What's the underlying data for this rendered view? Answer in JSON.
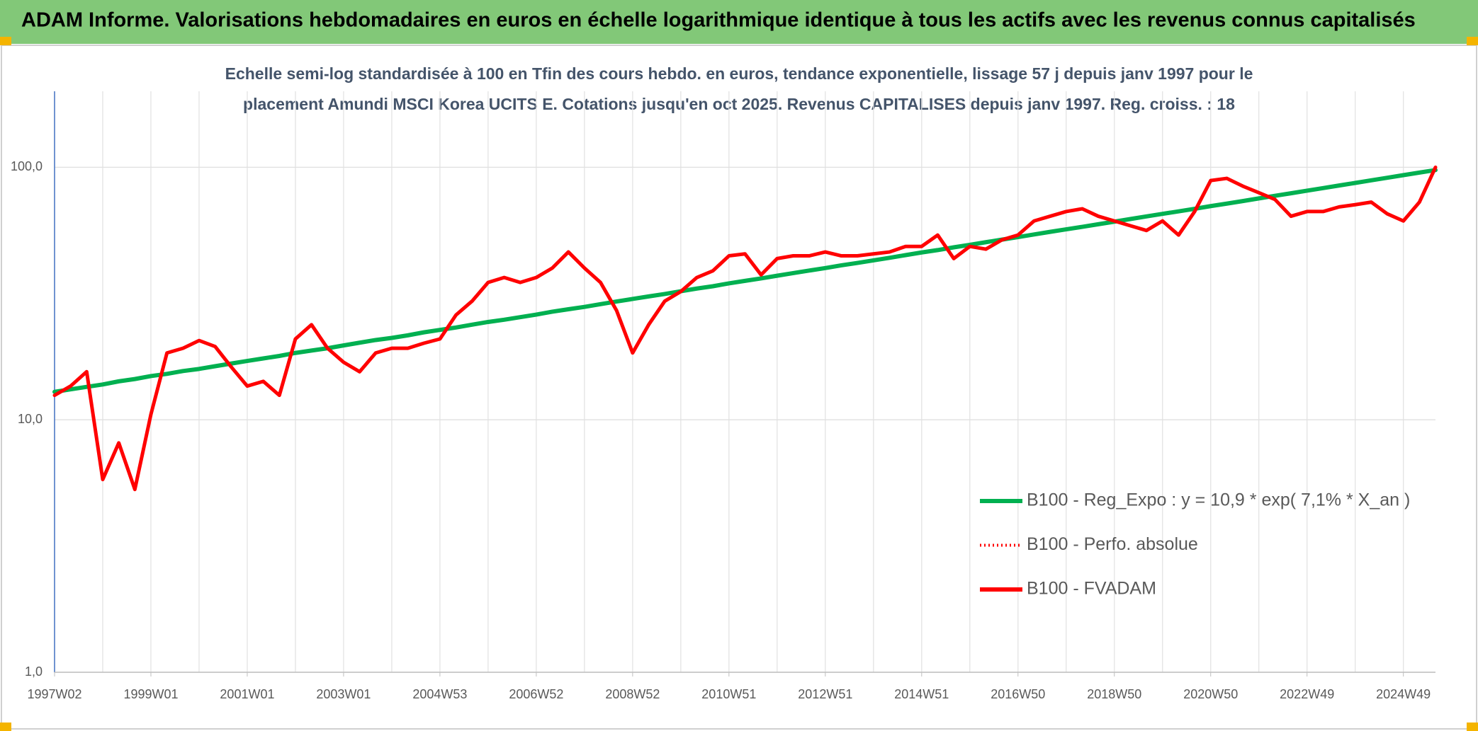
{
  "chart_data": {
    "type": "line",
    "title": "ADAM Informe. Valorisations hebdomadaires en euros en échelle logarithmique identique à tous les actifs avec les revenus connus capitalisés",
    "subtitle": [
      "Echelle semi-log standardisée à 100 en Tfin des cours hebdo. en euros, tendance exponentielle, lissage 57 j depuis janv 1997 pour le",
      "placement Amundi MSCI Korea UCITS E. Cotations jusqu'en oct 2025. Revenus CAPITALISES depuis janv 1997. Reg. croiss. : 18"
    ],
    "log_scale": true,
    "grid": true,
    "legend_position": "lower right",
    "ylim": [
      1,
      200
    ],
    "yticks": [
      {
        "value": 1,
        "label": "1,0"
      },
      {
        "value": 10,
        "label": "10,0"
      },
      {
        "value": 100,
        "label": "100,0"
      }
    ],
    "categories": [
      "1997W02",
      null,
      null,
      null,
      null,
      null,
      "1999W01",
      null,
      null,
      null,
      null,
      null,
      "2001W01",
      null,
      null,
      null,
      null,
      null,
      "2003W01",
      null,
      null,
      null,
      null,
      null,
      "2004W53",
      null,
      null,
      null,
      null,
      null,
      "2006W52",
      null,
      null,
      null,
      null,
      null,
      "2008W52",
      null,
      null,
      null,
      null,
      null,
      "2010W51",
      null,
      null,
      null,
      null,
      null,
      "2012W51",
      null,
      null,
      null,
      null,
      null,
      "2014W51",
      null,
      null,
      null,
      null,
      null,
      "2016W50",
      null,
      null,
      null,
      null,
      null,
      "2018W50",
      null,
      null,
      null,
      null,
      null,
      "2020W50",
      null,
      null,
      null,
      null,
      null,
      "2022W49",
      null,
      null,
      null,
      null,
      null,
      "2024W49",
      null,
      null
    ],
    "series": [
      {
        "name": "B100 - Reg_Expo : y = 10,9 * exp( 7,1% *  X_an )",
        "color": "#00b050",
        "dash": "solid",
        "values": [
          12.9,
          13.2,
          13.5,
          13.8,
          14.2,
          14.5,
          14.9,
          15.2,
          15.6,
          15.9,
          16.3,
          16.7,
          17.1,
          17.5,
          17.9,
          18.4,
          18.8,
          19.2,
          19.7,
          20.2,
          20.7,
          21.1,
          21.6,
          22.2,
          22.7,
          23.2,
          23.8,
          24.4,
          24.9,
          25.5,
          26.1,
          26.8,
          27.4,
          28.0,
          28.7,
          29.4,
          30.1,
          30.8,
          31.5,
          32.3,
          33.1,
          33.8,
          34.7,
          35.5,
          36.3,
          37.2,
          38.1,
          39.0,
          39.9,
          40.9,
          41.8,
          42.8,
          43.8,
          44.9,
          46.0,
          47.0,
          48.2,
          49.3,
          50.5,
          51.7,
          52.9,
          54.2,
          55.5,
          56.8,
          58.1,
          59.5,
          60.9,
          62.4,
          63.9,
          65.4,
          66.9,
          68.5,
          70.2,
          71.8,
          73.5,
          75.3,
          77.1,
          78.9,
          80.8,
          82.7,
          84.7,
          86.7,
          88.8,
          90.9,
          93.1,
          95.3,
          97.5
        ]
      },
      {
        "name": "B100 - Perfo. absolue",
        "color": "#ff0000",
        "dash": "dotted",
        "values": [
          12.5,
          13.6,
          15.5,
          5.8,
          8.1,
          5.3,
          10.5,
          18.4,
          19.2,
          20.6,
          19.5,
          16.2,
          13.6,
          14.2,
          12.5,
          20.9,
          23.8,
          19.2,
          16.9,
          15.5,
          18.4,
          19.2,
          19.2,
          20.1,
          20.9,
          26,
          29.5,
          35,
          36.6,
          35,
          36.6,
          39.9,
          46.2,
          39.9,
          35,
          27.1,
          18.4,
          23.8,
          29.5,
          32.2,
          36.6,
          38.9,
          44.6,
          45.4,
          37.5,
          43.5,
          44.6,
          44.6,
          46.2,
          44.6,
          44.6,
          45.4,
          46.2,
          48.6,
          48.6,
          53.9,
          43.5,
          48.6,
          47.4,
          51.6,
          53.9,
          61.3,
          64,
          66.8,
          68.5,
          64,
          61.3,
          58.7,
          56.2,
          61.3,
          53.9,
          66.8,
          88.6,
          90.4,
          84.2,
          79.3,
          74.6,
          64,
          66.8,
          66.8,
          69.7,
          71.1,
          72.8,
          65.4,
          61.3,
          72.8,
          100
        ]
      },
      {
        "name": "B100 - FVADAM",
        "color": "#ff0000",
        "dash": "solid",
        "values": [
          12.5,
          13.6,
          15.5,
          5.8,
          8.1,
          5.3,
          10.5,
          18.4,
          19.2,
          20.6,
          19.5,
          16.2,
          13.6,
          14.2,
          12.5,
          20.9,
          23.8,
          19.2,
          16.9,
          15.5,
          18.4,
          19.2,
          19.2,
          20.1,
          20.9,
          26,
          29.5,
          35,
          36.6,
          35,
          36.6,
          39.9,
          46.2,
          39.9,
          35,
          27.1,
          18.4,
          23.8,
          29.5,
          32.2,
          36.6,
          38.9,
          44.6,
          45.4,
          37.5,
          43.5,
          44.6,
          44.6,
          46.2,
          44.6,
          44.6,
          45.4,
          46.2,
          48.6,
          48.6,
          53.9,
          43.5,
          48.6,
          47.4,
          51.6,
          53.9,
          61.3,
          64,
          66.8,
          68.5,
          64,
          61.3,
          58.7,
          56.2,
          61.3,
          53.9,
          66.8,
          88.6,
          90.4,
          84.2,
          79.3,
          74.6,
          64,
          66.8,
          66.8,
          69.7,
          71.1,
          72.8,
          65.4,
          61.3,
          72.8,
          100
        ]
      }
    ]
  }
}
